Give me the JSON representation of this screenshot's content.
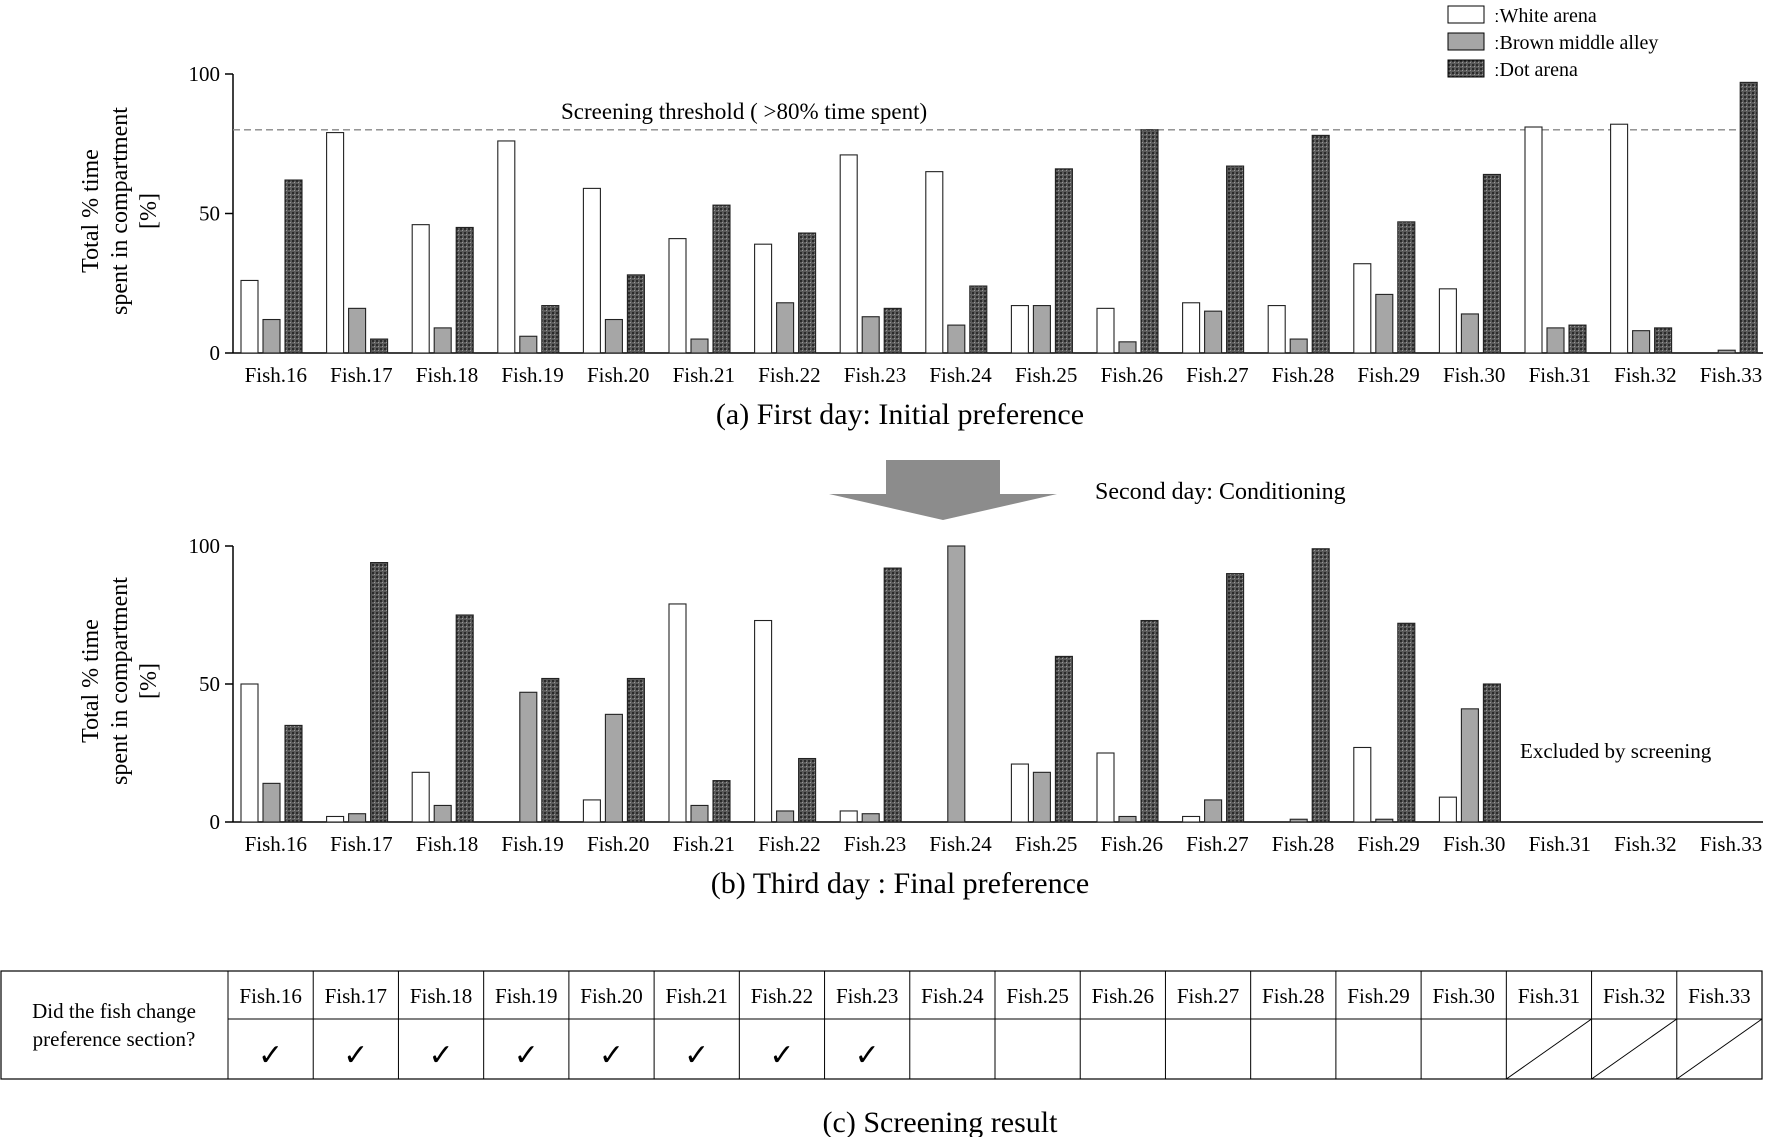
{
  "legend": {
    "items": [
      {
        "label": "ːWhite arena",
        "fill_key": "white"
      },
      {
        "label": "ːBrown middle alley",
        "fill_key": "gray"
      },
      {
        "label": "ːDot arena",
        "fill_key": "dot"
      }
    ]
  },
  "colors": {
    "white": "#ffffff",
    "gray": "#a6a6a6",
    "dot": "#3a3a3a",
    "axis": "#000000",
    "threshold": "#888888"
  },
  "arrow_label": "Second day: Conditioning",
  "chart_data": [
    {
      "type": "bar",
      "title": "(a) First day: Initial preference",
      "ylabel_lines": [
        "Total % time",
        "spent in compartment",
        "[%]"
      ],
      "ylim": [
        0,
        100
      ],
      "yticks": [
        0,
        50,
        100
      ],
      "categories": [
        "Fish.16",
        "Fish.17",
        "Fish.18",
        "Fish.19",
        "Fish.20",
        "Fish.21",
        "Fish.22",
        "Fish.23",
        "Fish.24",
        "Fish.25",
        "Fish.26",
        "Fish.27",
        "Fish.28",
        "Fish.29",
        "Fish.30",
        "Fish.31",
        "Fish.32",
        "Fish.33"
      ],
      "series": [
        {
          "name": "White arena",
          "values": [
            26,
            79,
            46,
            76,
            59,
            41,
            39,
            71,
            65,
            17,
            16,
            18,
            17,
            32,
            23,
            81,
            82,
            0
          ]
        },
        {
          "name": "Brown middle alley",
          "values": [
            12,
            16,
            9,
            6,
            12,
            5,
            18,
            13,
            10,
            17,
            4,
            15,
            5,
            21,
            14,
            9,
            8,
            1
          ]
        },
        {
          "name": "Dot arena",
          "values": [
            62,
            5,
            45,
            17,
            28,
            53,
            43,
            16,
            24,
            66,
            80,
            67,
            78,
            47,
            64,
            10,
            9,
            97
          ]
        }
      ],
      "threshold": {
        "value": 80,
        "label": "Screening threshold ( >80% time spent)"
      }
    },
    {
      "type": "bar",
      "title": "(b) Third day : Final preference",
      "ylabel_lines": [
        "Total % time",
        "spent in compartment",
        "[%]"
      ],
      "ylim": [
        0,
        100
      ],
      "yticks": [
        0,
        50,
        100
      ],
      "categories": [
        "Fish.16",
        "Fish.17",
        "Fish.18",
        "Fish.19",
        "Fish.20",
        "Fish.21",
        "Fish.22",
        "Fish.23",
        "Fish.24",
        "Fish.25",
        "Fish.26",
        "Fish.27",
        "Fish.28",
        "Fish.29",
        "Fish.30",
        "Fish.31",
        "Fish.32",
        "Fish.33"
      ],
      "series": [
        {
          "name": "White arena",
          "values": [
            50,
            2,
            18,
            0,
            8,
            79,
            73,
            4,
            0,
            21,
            25,
            2,
            0,
            27,
            9,
            null,
            null,
            null
          ]
        },
        {
          "name": "Brown middle alley",
          "values": [
            14,
            3,
            6,
            47,
            39,
            6,
            4,
            3,
            100,
            18,
            2,
            8,
            1,
            1,
            41,
            null,
            null,
            null
          ]
        },
        {
          "name": "Dot arena",
          "values": [
            35,
            94,
            75,
            52,
            52,
            15,
            23,
            92,
            0,
            60,
            73,
            90,
            99,
            72,
            50,
            null,
            null,
            null
          ]
        }
      ],
      "annotation": "Excluded by screening"
    },
    {
      "type": "table",
      "title": "(c) Screening result",
      "row_label_lines": [
        "Did the fish change",
        "preference section?"
      ],
      "columns": [
        "Fish.16",
        "Fish.17",
        "Fish.18",
        "Fish.19",
        "Fish.20",
        "Fish.21",
        "Fish.22",
        "Fish.23",
        "Fish.24",
        "Fish.25",
        "Fish.26",
        "Fish.27",
        "Fish.28",
        "Fish.29",
        "Fish.30",
        "Fish.31",
        "Fish.32",
        "Fish.33"
      ],
      "values": [
        "✓",
        "✓",
        "✓",
        "✓",
        "✓",
        "✓",
        "✓",
        "✓",
        "",
        "",
        "",
        "",
        "",
        "",
        "",
        "excluded",
        "excluded",
        "excluded"
      ]
    }
  ]
}
